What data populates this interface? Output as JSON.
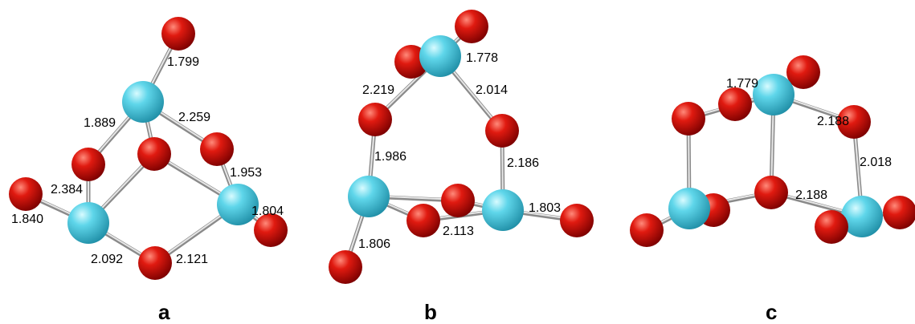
{
  "panels": [
    {
      "label": "a",
      "bond_lengths": [
        "1.799",
        "1.889",
        "2.259",
        "1.953",
        "2.384",
        "1.840",
        "1.804",
        "2.092",
        "2.121"
      ]
    },
    {
      "label": "b",
      "bond_lengths": [
        "1.778",
        "2.219",
        "2.014",
        "1.986",
        "2.186",
        "1.803",
        "2.113",
        "1.806"
      ]
    },
    {
      "label": "c",
      "bond_lengths": [
        "1.779",
        "2.188",
        "2.018",
        "2.188"
      ]
    }
  ]
}
